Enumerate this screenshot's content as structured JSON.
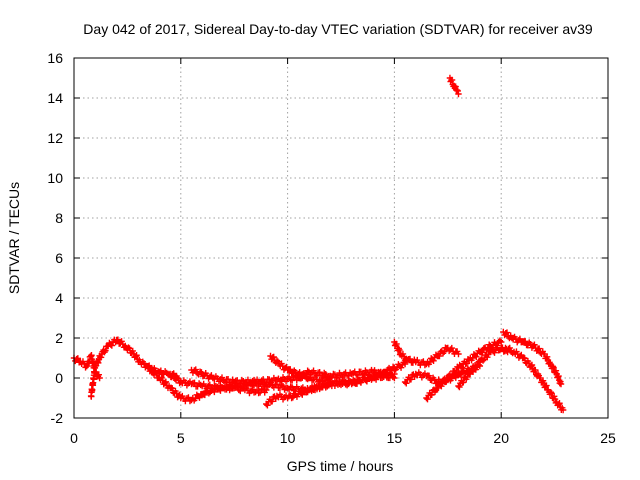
{
  "chart_data": {
    "type": "scatter",
    "title": "Day 042 of 2017, Sidereal Day-to-day VTEC variation (SDTVAR) for receiver av39",
    "xlabel": "GPS time / hours",
    "ylabel": "SDTVAR / TECUs",
    "xlim": [
      0,
      25
    ],
    "ylim": [
      -2,
      16
    ],
    "xticks": [
      "0",
      "5",
      "10",
      "15",
      "20",
      "25"
    ],
    "yticks": [
      "-2",
      "0",
      "2",
      "4",
      "6",
      "8",
      "10",
      "12",
      "14",
      "16"
    ],
    "grid": true,
    "marker": "+",
    "color": "#ff0000",
    "series": [
      {
        "name": "SDTVAR",
        "segments": [
          [
            [
              0.0,
              1.0
            ],
            [
              0.3,
              0.8
            ],
            [
              0.6,
              0.6
            ],
            [
              0.8,
              1.1
            ],
            [
              1.0,
              0.3
            ],
            [
              1.2,
              0.0
            ]
          ],
          [
            [
              0.8,
              -0.9
            ],
            [
              1.0,
              0.6
            ],
            [
              1.3,
              1.2
            ],
            [
              1.6,
              1.6
            ],
            [
              2.0,
              1.9
            ],
            [
              2.4,
              1.6
            ],
            [
              2.8,
              1.2
            ],
            [
              3.1,
              0.8
            ],
            [
              3.4,
              0.6
            ],
            [
              3.7,
              0.4
            ],
            [
              4.0,
              0.3
            ],
            [
              4.4,
              0.2
            ],
            [
              4.8,
              0.1
            ]
          ],
          [
            [
              3.5,
              0.5
            ],
            [
              4.0,
              0.0
            ],
            [
              4.5,
              -0.5
            ],
            [
              5.0,
              -1.0
            ],
            [
              5.5,
              -1.1
            ],
            [
              6.0,
              -0.8
            ],
            [
              6.5,
              -0.6
            ],
            [
              7.0,
              -0.5
            ],
            [
              7.5,
              -0.5
            ],
            [
              8.0,
              -0.6
            ],
            [
              8.5,
              -0.7
            ],
            [
              9.0,
              -0.6
            ]
          ],
          [
            [
              4.5,
              0.2
            ],
            [
              5.0,
              -0.2
            ],
            [
              5.5,
              -0.3
            ],
            [
              6.0,
              -0.4
            ],
            [
              7.0,
              -0.5
            ],
            [
              8.0,
              -0.3
            ],
            [
              9.0,
              -0.3
            ],
            [
              10.0,
              -0.5
            ],
            [
              11.0,
              -0.6
            ],
            [
              12.0,
              -0.3
            ],
            [
              13.0,
              -0.2
            ],
            [
              14.0,
              0.0
            ],
            [
              15.0,
              0.2
            ]
          ],
          [
            [
              5.5,
              0.4
            ],
            [
              6.5,
              0.0
            ],
            [
              7.5,
              -0.2
            ],
            [
              8.5,
              -0.2
            ],
            [
              9.5,
              -0.1
            ],
            [
              10.5,
              0.0
            ],
            [
              11.0,
              0.3
            ],
            [
              12.0,
              0.1
            ],
            [
              13.0,
              0.2
            ],
            [
              14.0,
              0.3
            ],
            [
              15.0,
              0.0
            ]
          ],
          [
            [
              9.2,
              1.1
            ],
            [
              9.6,
              0.7
            ],
            [
              10.0,
              0.4
            ],
            [
              10.5,
              0.2
            ],
            [
              11.0,
              0.0
            ],
            [
              11.5,
              -0.1
            ],
            [
              12.0,
              0.0
            ]
          ],
          [
            [
              9.0,
              -1.3
            ],
            [
              9.5,
              -0.9
            ],
            [
              10.0,
              -1.0
            ],
            [
              10.5,
              -0.8
            ],
            [
              11.0,
              -0.6
            ],
            [
              11.5,
              -0.4
            ],
            [
              12.0,
              -0.3
            ],
            [
              12.5,
              -0.2
            ],
            [
              13.0,
              -0.3
            ],
            [
              13.5,
              -0.1
            ],
            [
              14.0,
              0.1
            ],
            [
              14.5,
              0.3
            ],
            [
              15.0,
              0.5
            ],
            [
              15.5,
              0.7
            ]
          ],
          [
            [
              15.0,
              1.8
            ],
            [
              15.3,
              1.2
            ],
            [
              15.6,
              0.9
            ],
            [
              16.0,
              0.8
            ],
            [
              16.5,
              0.7
            ],
            [
              17.0,
              1.1
            ],
            [
              17.5,
              1.5
            ],
            [
              18.0,
              1.2
            ]
          ],
          [
            [
              15.5,
              -0.2
            ],
            [
              16.0,
              0.2
            ],
            [
              16.5,
              0.1
            ],
            [
              17.0,
              -0.2
            ],
            [
              17.5,
              -0.1
            ],
            [
              18.0,
              0.2
            ],
            [
              18.5,
              0.4
            ],
            [
              19.0,
              0.6
            ]
          ],
          [
            [
              16.5,
              -1.0
            ],
            [
              17.0,
              -0.5
            ],
            [
              17.5,
              0.0
            ],
            [
              18.0,
              0.5
            ],
            [
              18.5,
              0.9
            ],
            [
              19.0,
              1.3
            ],
            [
              19.5,
              1.6
            ],
            [
              20.0,
              1.8
            ]
          ],
          [
            [
              18.0,
              -0.4
            ],
            [
              18.5,
              0.2
            ],
            [
              19.0,
              0.8
            ],
            [
              19.5,
              1.3
            ],
            [
              20.0,
              1.5
            ],
            [
              20.3,
              1.3
            ]
          ],
          [
            [
              17.6,
              15.0
            ],
            [
              17.8,
              14.6
            ],
            [
              17.9,
              14.4
            ],
            [
              18.0,
              14.2
            ]
          ],
          [
            [
              20.1,
              2.3
            ],
            [
              20.5,
              2.0
            ],
            [
              21.0,
              1.8
            ],
            [
              21.5,
              1.6
            ],
            [
              22.0,
              1.2
            ],
            [
              22.3,
              0.7
            ],
            [
              22.6,
              0.2
            ],
            [
              22.8,
              -0.3
            ]
          ],
          [
            [
              20.2,
              1.5
            ],
            [
              20.6,
              1.3
            ],
            [
              21.0,
              1.0
            ],
            [
              21.4,
              0.6
            ],
            [
              21.8,
              0.0
            ],
            [
              22.2,
              -0.6
            ],
            [
              22.6,
              -1.2
            ],
            [
              22.9,
              -1.6
            ]
          ]
        ]
      }
    ]
  }
}
